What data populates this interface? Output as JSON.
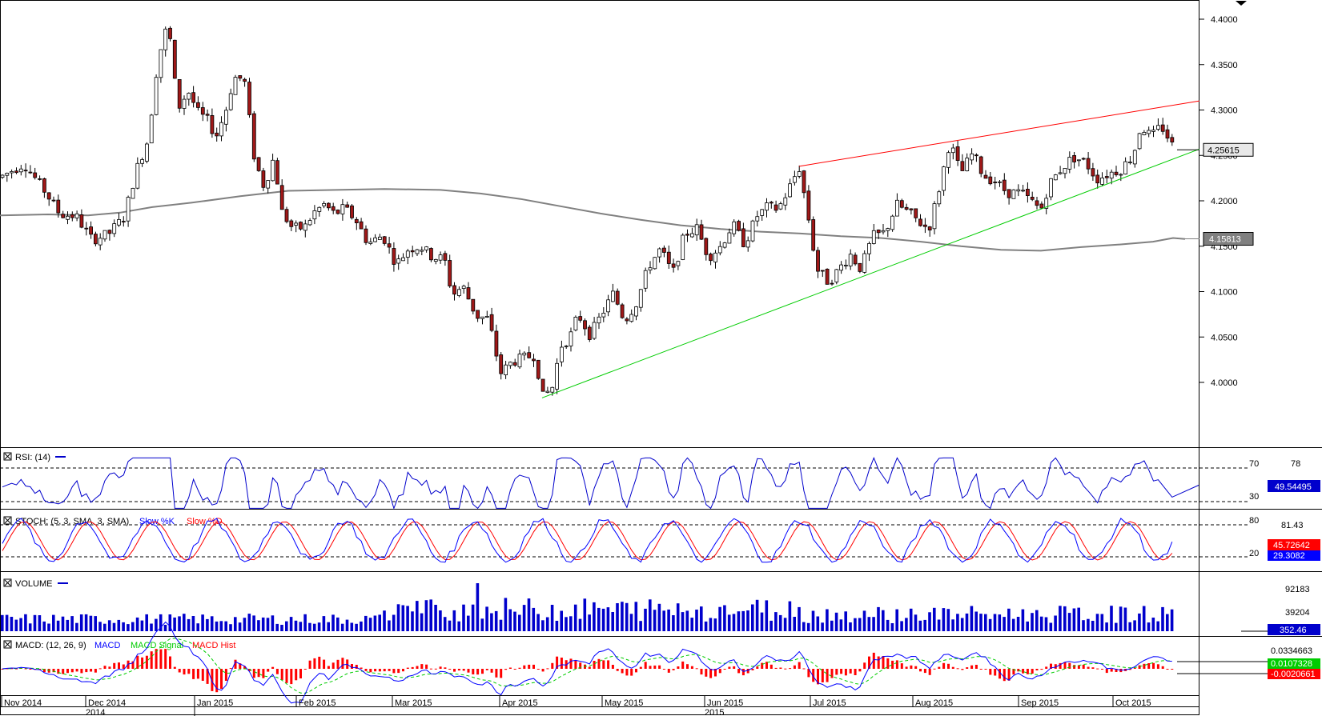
{
  "chart_data": {
    "type": "candlestick",
    "main": {
      "y_ticks": [
        "4.4000",
        "4.3500",
        "4.3000",
        "4.2500",
        "4.2000",
        "4.1500",
        "4.1000",
        "4.0500",
        "4.0000"
      ],
      "ylim": [
        3.955,
        4.415
      ],
      "last_price": "4.25615",
      "ma_value": "4.15813",
      "ma_line": [
        [
          0,
          4.184
        ],
        [
          60,
          4.185
        ],
        [
          110,
          4.184
        ],
        [
          150,
          4.187
        ],
        [
          190,
          4.193
        ],
        [
          240,
          4.198
        ],
        [
          300,
          4.205
        ],
        [
          360,
          4.211
        ],
        [
          420,
          4.212
        ],
        [
          480,
          4.213
        ],
        [
          550,
          4.212
        ],
        [
          600,
          4.208
        ],
        [
          650,
          4.202
        ],
        [
          700,
          4.194
        ],
        [
          750,
          4.186
        ],
        [
          800,
          4.179
        ],
        [
          850,
          4.173
        ],
        [
          900,
          4.169
        ],
        [
          950,
          4.166
        ],
        [
          1000,
          4.164
        ],
        [
          1050,
          4.161
        ],
        [
          1100,
          4.159
        ],
        [
          1150,
          4.155
        ],
        [
          1200,
          4.15
        ],
        [
          1250,
          4.146
        ],
        [
          1300,
          4.145
        ],
        [
          1350,
          4.149
        ],
        [
          1400,
          4.152
        ],
        [
          1440,
          4.155
        ],
        [
          1465,
          4.159
        ],
        [
          1480,
          4.158
        ]
      ],
      "resistance_line": {
        "color": "#ff0000",
        "from": [
          998,
          4.238
        ],
        "to": [
          1498,
          4.31
        ]
      },
      "support_line": {
        "color": "#00cc00",
        "from": [
          677,
          3.983
        ],
        "to": [
          1498,
          4.257
        ]
      },
      "swing_points": [
        [
          0,
          4.226
        ],
        [
          30,
          4.241
        ],
        [
          55,
          4.212
        ],
        [
          75,
          4.185
        ],
        [
          95,
          4.183
        ],
        [
          115,
          4.157
        ],
        [
          135,
          4.163
        ],
        [
          155,
          4.182
        ],
        [
          170,
          4.233
        ],
        [
          185,
          4.268
        ],
        [
          197,
          4.355
        ],
        [
          210,
          4.397
        ],
        [
          222,
          4.301
        ],
        [
          235,
          4.321
        ],
        [
          248,
          4.296
        ],
        [
          258,
          4.29
        ],
        [
          270,
          4.271
        ],
        [
          282,
          4.3
        ],
        [
          292,
          4.336
        ],
        [
          305,
          4.334
        ],
        [
          318,
          4.245
        ],
        [
          330,
          4.215
        ],
        [
          342,
          4.248
        ],
        [
          352,
          4.188
        ],
        [
          365,
          4.17
        ],
        [
          380,
          4.17
        ],
        [
          392,
          4.187
        ],
        [
          405,
          4.196
        ],
        [
          418,
          4.185
        ],
        [
          430,
          4.192
        ],
        [
          445,
          4.178
        ],
        [
          460,
          4.153
        ],
        [
          478,
          4.162
        ],
        [
          495,
          4.13
        ],
        [
          510,
          4.147
        ],
        [
          525,
          4.15
        ],
        [
          540,
          4.138
        ],
        [
          555,
          4.136
        ],
        [
          565,
          4.096
        ],
        [
          578,
          4.106
        ],
        [
          595,
          4.073
        ],
        [
          610,
          4.07
        ],
        [
          625,
          4.01
        ],
        [
          640,
          4.023
        ],
        [
          655,
          4.027
        ],
        [
          668,
          4.03
        ],
        [
          678,
          3.984
        ],
        [
          690,
          3.995
        ],
        [
          700,
          4.04
        ],
        [
          712,
          4.05
        ],
        [
          722,
          4.075
        ],
        [
          737,
          4.052
        ],
        [
          752,
          4.076
        ],
        [
          766,
          4.098
        ],
        [
          780,
          4.068
        ],
        [
          795,
          4.088
        ],
        [
          810,
          4.128
        ],
        [
          825,
          4.147
        ],
        [
          840,
          4.119
        ],
        [
          855,
          4.163
        ],
        [
          870,
          4.17
        ],
        [
          885,
          4.138
        ],
        [
          900,
          4.15
        ],
        [
          915,
          4.174
        ],
        [
          930,
          4.152
        ],
        [
          945,
          4.183
        ],
        [
          958,
          4.193
        ],
        [
          972,
          4.191
        ],
        [
          985,
          4.213
        ],
        [
          998,
          4.237
        ],
        [
          1008,
          4.19
        ],
        [
          1020,
          4.125
        ],
        [
          1035,
          4.11
        ],
        [
          1048,
          4.125
        ],
        [
          1062,
          4.141
        ],
        [
          1075,
          4.125
        ],
        [
          1090,
          4.161
        ],
        [
          1105,
          4.165
        ],
        [
          1120,
          4.196
        ],
        [
          1135,
          4.187
        ],
        [
          1150,
          4.175
        ],
        [
          1160,
          4.169
        ],
        [
          1172,
          4.21
        ],
        [
          1186,
          4.265
        ],
        [
          1200,
          4.23
        ],
        [
          1215,
          4.253
        ],
        [
          1228,
          4.228
        ],
        [
          1242,
          4.222
        ],
        [
          1258,
          4.209
        ],
        [
          1275,
          4.209
        ],
        [
          1290,
          4.198
        ],
        [
          1300,
          4.19
        ],
        [
          1310,
          4.218
        ],
        [
          1325,
          4.235
        ],
        [
          1340,
          4.248
        ],
        [
          1355,
          4.243
        ],
        [
          1370,
          4.224
        ],
        [
          1385,
          4.23
        ],
        [
          1400,
          4.235
        ],
        [
          1415,
          4.25
        ],
        [
          1425,
          4.283
        ],
        [
          1438,
          4.27
        ],
        [
          1450,
          4.283
        ],
        [
          1460,
          4.268
        ],
        [
          1467,
          4.256
        ]
      ]
    },
    "x_labels": [
      "Nov 2014",
      "Dec 2014",
      "Jan 2015",
      "Feb 2015",
      "Mar 2015",
      "Apr 2015",
      "May 2015",
      "Jun 2015",
      "Jul 2015",
      "Aug 2015",
      "Sep 2015",
      "Oct 2015"
    ],
    "x_years": [
      "2014",
      "2015"
    ],
    "rsi": {
      "title": "RSI: (14)",
      "levels": [
        "70",
        "30"
      ],
      "right_label": "78",
      "value": "49.54495"
    },
    "stoch": {
      "title": "STOCH: (5, 3, SMA, 3, SMA)",
      "legend": [
        "Slow %K",
        "Slow %D"
      ],
      "levels": [
        "80",
        "20"
      ],
      "right_label": "81.43",
      "k_value": "29.3082",
      "d_value": "45.72642"
    },
    "volume": {
      "title": "VOLUME",
      "right_labels": [
        "92183",
        "39204"
      ],
      "value": "352.46"
    },
    "macd": {
      "title": "MACD: (12, 26, 9)",
      "legend": [
        "MACD",
        "MACD Signal",
        "MACD Hist"
      ],
      "right_label": "0.0334663",
      "signal_value": "0.0107328",
      "hist_value": "-0.0020661"
    }
  },
  "colors": {
    "bull": "#ffffff",
    "bear": "#a01818",
    "wick": "#000000",
    "ma": "#808080",
    "rsi": "#0000cc",
    "stoch_k": "#0000ff",
    "stoch_d": "#ff0000",
    "volume": "#0000cc",
    "macd": "#0000ff",
    "macd_signal": "#00cc00",
    "macd_hist": "#ff0000"
  }
}
